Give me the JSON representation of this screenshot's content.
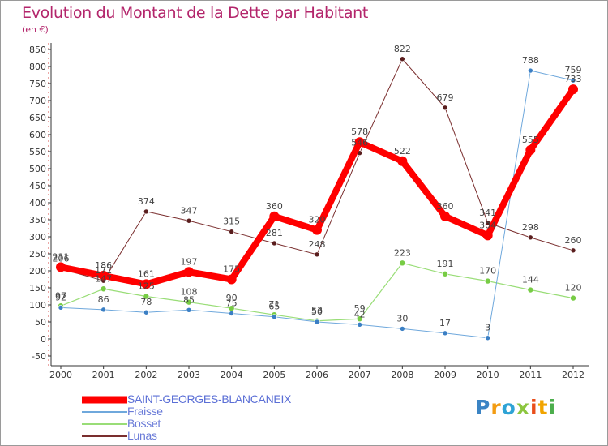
{
  "chart_data": {
    "type": "line",
    "title": "Evolution du Montant de la Dette par Habitant",
    "subtitle": "(en €)",
    "xlabel": "",
    "ylabel": "",
    "x": [
      "2000",
      "2001",
      "2002",
      "2003",
      "2004",
      "2005",
      "2006",
      "2007",
      "2008",
      "2009",
      "2010",
      "2011",
      "2012"
    ],
    "ylim": [
      -50,
      850
    ],
    "yticks": [
      -50,
      0,
      50,
      100,
      150,
      200,
      250,
      300,
      350,
      400,
      450,
      500,
      550,
      600,
      650,
      700,
      750,
      800,
      850
    ],
    "grid": false,
    "legend_position": "bottom-left",
    "series": [
      {
        "name": "SAINT-GEORGES-BLANCANEIX",
        "color": "#ff0000",
        "values": [
          211,
          186,
          161,
          197,
          175,
          360,
          320,
          578,
          522,
          360,
          304,
          555,
          733
        ]
      },
      {
        "name": "Fraisse",
        "color": "#6fa8dc",
        "values": [
          92,
          86,
          78,
          85,
          75,
          65,
          50,
          42,
          30,
          17,
          3,
          788,
          759
        ]
      },
      {
        "name": "Bosset",
        "color": "#99dd77",
        "values": [
          97,
          147,
          125,
          108,
          90,
          71,
          53,
          59,
          223,
          191,
          170,
          144,
          120
        ]
      },
      {
        "name": "Lunas",
        "color": "#7a2e2e",
        "values": [
          206,
          171,
          374,
          347,
          315,
          281,
          248,
          546,
          822,
          679,
          341,
          298,
          260
        ]
      }
    ]
  },
  "brand": {
    "letters": [
      "P",
      "r",
      "o",
      "x",
      "i",
      "t",
      "i"
    ],
    "colors": [
      "#3b84c4",
      "#f39c12",
      "#2ea3d5",
      "#8cc63f",
      "#e94e1b",
      "#f1a400",
      "#4cae4c"
    ]
  }
}
